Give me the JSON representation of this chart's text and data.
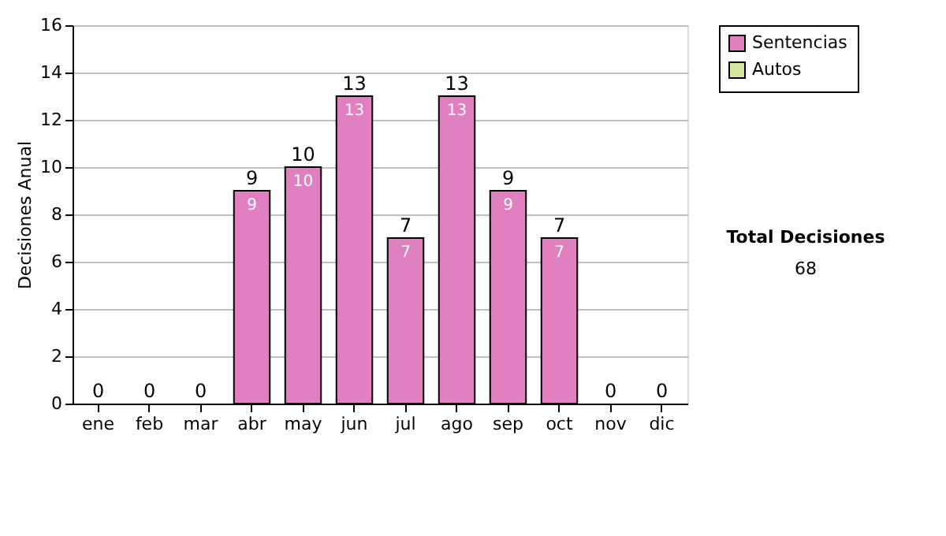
{
  "chart_data": {
    "type": "bar",
    "ylabel": "Decisiones Anual",
    "categories": [
      "ene",
      "feb",
      "mar",
      "abr",
      "may",
      "jun",
      "jul",
      "ago",
      "sep",
      "oct",
      "nov",
      "dic"
    ],
    "series": [
      {
        "name": "Sentencias",
        "color": "#e080c0",
        "values": [
          0,
          0,
          0,
          9,
          10,
          13,
          7,
          13,
          9,
          7,
          0,
          0
        ],
        "value_labels": [
          null,
          null,
          null,
          "9",
          "10",
          "13",
          "7",
          "13",
          "9",
          "7",
          null,
          null
        ]
      },
      {
        "name": "Autos",
        "color": "#d4e8a0",
        "values": [
          0,
          0,
          0,
          0,
          0,
          0,
          0,
          0,
          0,
          0,
          0,
          0
        ]
      }
    ],
    "stacked": true,
    "totals": [
      "0",
      "0",
      "0",
      "9",
      "10",
      "13",
      "7",
      "13",
      "9",
      "7",
      "0",
      "0"
    ],
    "ylim": [
      0,
      16
    ],
    "yticks": [
      0,
      2,
      4,
      6,
      8,
      10,
      12,
      14,
      16
    ],
    "grid": "y",
    "legend": "right",
    "annotations": [
      "Total Decisiones",
      "68"
    ]
  }
}
